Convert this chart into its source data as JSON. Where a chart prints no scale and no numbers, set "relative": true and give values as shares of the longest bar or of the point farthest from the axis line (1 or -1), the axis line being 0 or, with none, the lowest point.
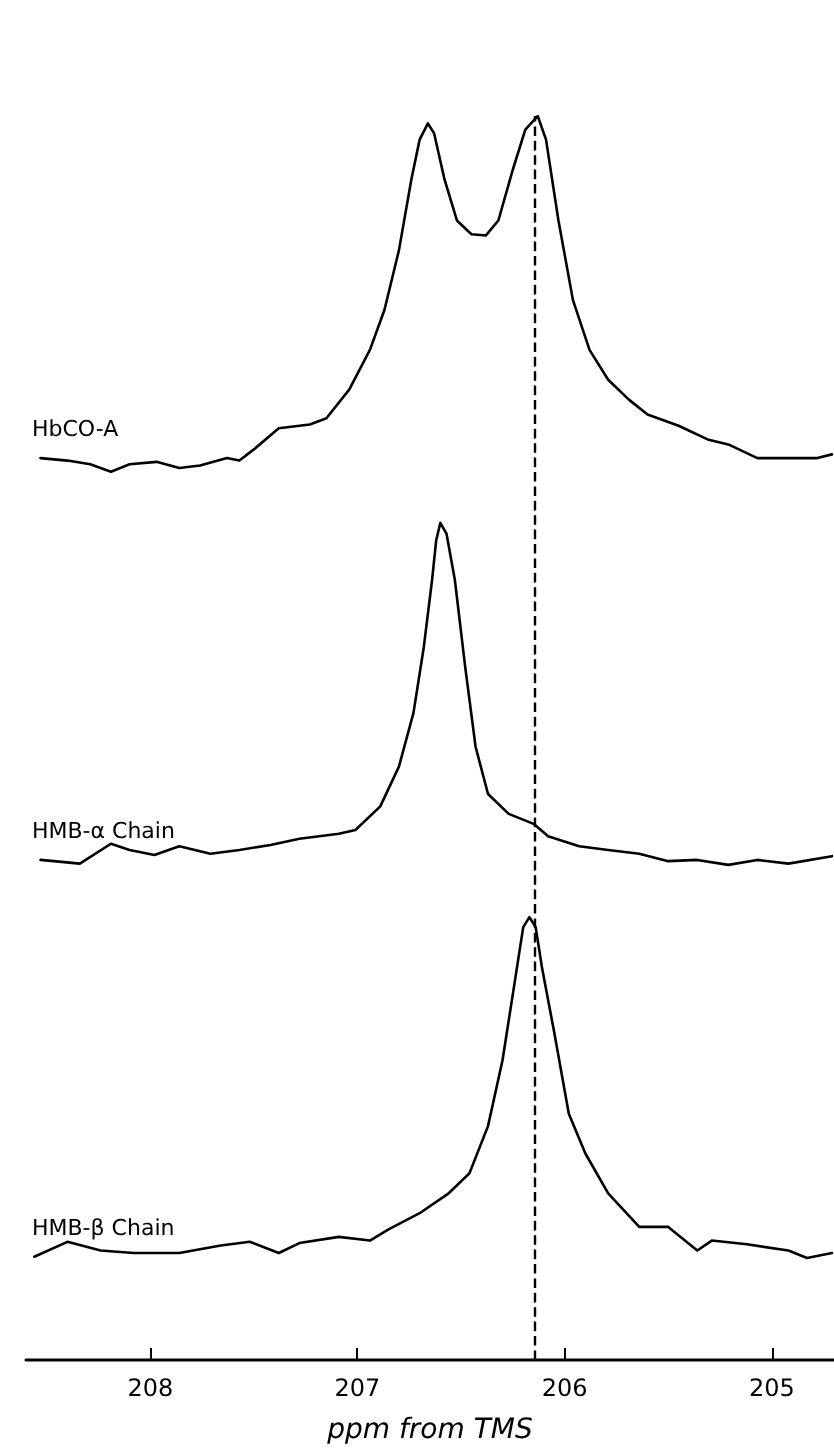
{
  "chart_data": {
    "type": "line",
    "xlim": [
      208.6,
      204.7
    ],
    "xticks": [
      208,
      207,
      206,
      205
    ],
    "xlabel": "ppm from TMS",
    "tick_labels": "x",
    "relative": true,
    "grid": false,
    "legend": false,
    "marker": "none",
    "line_style": "solid",
    "ref_lines": [
      {
        "axis": "x",
        "value": 206.15,
        "color": "#000000",
        "line_style": "dashed"
      }
    ],
    "series": [
      {
        "name": "HbCO-A",
        "color": "#000000",
        "x": [
          208.53,
          208.4,
          208.29,
          208.19,
          208.1,
          207.97,
          207.86,
          207.76,
          207.63,
          207.57,
          207.5,
          207.38,
          207.23,
          207.15,
          207.04,
          206.94,
          206.87,
          206.8,
          206.74,
          206.7,
          206.66,
          206.63,
          206.58,
          206.52,
          206.45,
          206.38,
          206.32,
          206.25,
          206.19,
          206.13,
          206.09,
          206.03,
          205.96,
          205.88,
          205.79,
          205.69,
          205.6,
          205.45,
          205.31,
          205.21,
          205.07,
          204.92,
          204.78,
          204.71
        ],
        "values": [
          0.725,
          0.723,
          0.72,
          0.714,
          0.72,
          0.722,
          0.717,
          0.719,
          0.725,
          0.723,
          0.732,
          0.749,
          0.752,
          0.757,
          0.78,
          0.812,
          0.844,
          0.892,
          0.949,
          0.981,
          0.994,
          0.986,
          0.949,
          0.916,
          0.905,
          0.904,
          0.916,
          0.957,
          0.989,
          1,
          0.981,
          0.916,
          0.852,
          0.812,
          0.788,
          0.772,
          0.76,
          0.751,
          0.74,
          0.736,
          0.725,
          0.725,
          0.725,
          0.728
        ]
      },
      {
        "name": "HMB-α Chain",
        "color": "#000000",
        "x": [
          208.53,
          208.34,
          208.19,
          208.1,
          207.98,
          207.86,
          207.71,
          207.57,
          207.42,
          207.28,
          207.09,
          207.01,
          206.89,
          206.8,
          206.73,
          206.68,
          206.64,
          206.62,
          206.6,
          206.57,
          206.53,
          206.48,
          206.43,
          206.37,
          206.27,
          206.15,
          206.08,
          205.93,
          205.79,
          205.64,
          205.5,
          205.36,
          205.21,
          205.07,
          204.92,
          204.71
        ],
        "values": [
          0.402,
          0.399,
          0.415,
          0.41,
          0.406,
          0.413,
          0.407,
          0.41,
          0.414,
          0.419,
          0.423,
          0.426,
          0.445,
          0.477,
          0.52,
          0.573,
          0.627,
          0.659,
          0.673,
          0.664,
          0.627,
          0.557,
          0.493,
          0.455,
          0.439,
          0.431,
          0.421,
          0.413,
          0.41,
          0.407,
          0.401,
          0.402,
          0.398,
          0.402,
          0.399,
          0.405
        ]
      },
      {
        "name": "HMB-β Chain",
        "color": "#000000",
        "x": [
          208.56,
          208.4,
          208.24,
          208.08,
          207.86,
          207.66,
          207.52,
          207.38,
          207.28,
          207.09,
          206.94,
          206.85,
          206.7,
          206.56,
          206.46,
          206.37,
          206.3,
          206.24,
          206.2,
          206.17,
          206.14,
          206.11,
          206.05,
          205.98,
          205.9,
          205.79,
          205.64,
          205.5,
          205.36,
          205.29,
          205.12,
          204.92,
          204.83,
          204.71
        ],
        "values": [
          0.083,
          0.095,
          0.088,
          0.086,
          0.086,
          0.092,
          0.095,
          0.086,
          0.094,
          0.099,
          0.096,
          0.105,
          0.118,
          0.134,
          0.15,
          0.188,
          0.241,
          0.305,
          0.348,
          0.356,
          0.348,
          0.316,
          0.263,
          0.198,
          0.166,
          0.134,
          0.107,
          0.107,
          0.088,
          0.096,
          0.093,
          0.088,
          0.082,
          0.086
        ]
      }
    ]
  }
}
